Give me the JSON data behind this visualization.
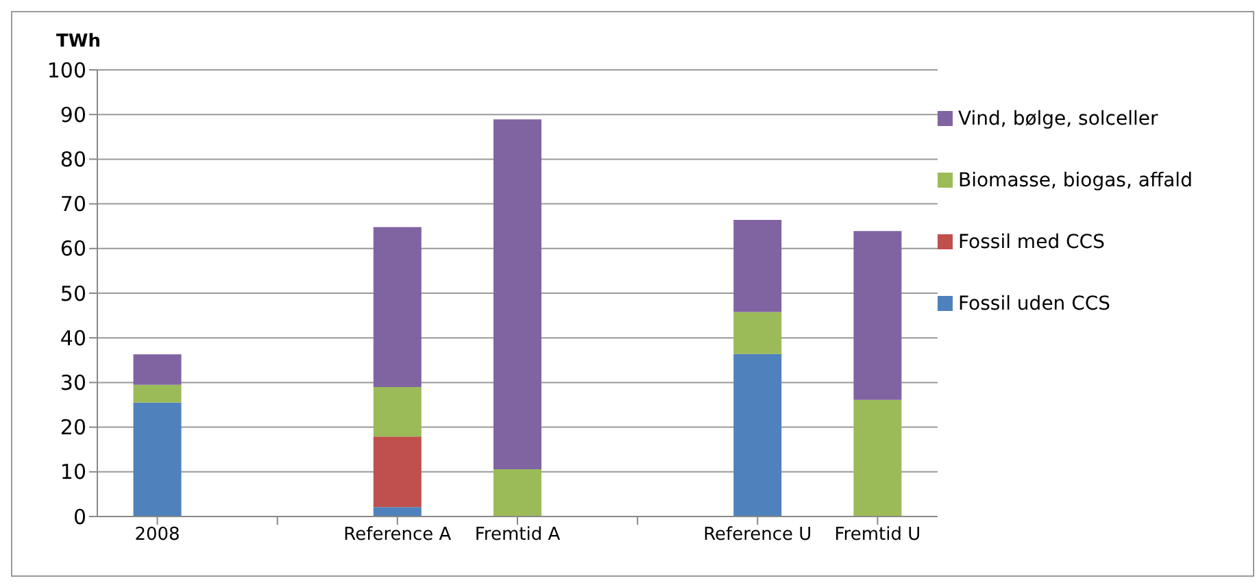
{
  "chart_data": {
    "type": "bar",
    "stacked": true,
    "ylabel": "TWh",
    "categories": [
      "2008",
      null,
      "Reference A",
      "Fremtid A",
      null,
      "Reference U",
      "Fremtid U"
    ],
    "series": [
      {
        "name": "Fossil uden CCS",
        "color": "#4f81bd",
        "values": [
          25.5,
          null,
          2.1,
          null,
          null,
          36.4,
          null
        ]
      },
      {
        "name": "Fossil med CCS",
        "color": "#c0504d",
        "values": [
          null,
          null,
          15.8,
          null,
          null,
          null,
          null
        ]
      },
      {
        "name": "Biomasse, biogas, affald",
        "color": "#9bbb59",
        "values": [
          4,
          null,
          11.1,
          10.6,
          null,
          9.4,
          26.1
        ]
      },
      {
        "name": "Vind, bølge, solceller",
        "color": "#8064a2",
        "values": [
          6.8,
          null,
          35.8,
          78.3,
          null,
          20.6,
          37.8
        ]
      }
    ],
    "ylim": [
      0,
      100
    ],
    "yticks": [
      0,
      10,
      20,
      30,
      40,
      50,
      60,
      70,
      80,
      90,
      100
    ],
    "grid": "y",
    "legend": "right"
  }
}
